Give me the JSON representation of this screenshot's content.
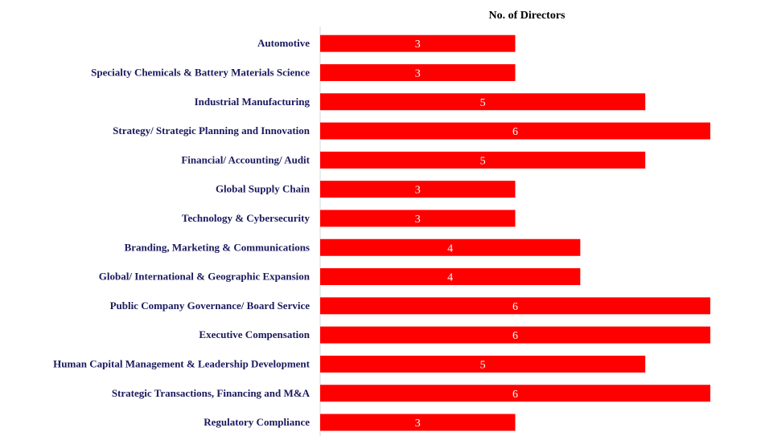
{
  "chart_data": {
    "type": "bar",
    "orientation": "horizontal",
    "title": "No. of Directors",
    "categories": [
      "Automotive",
      "Specialty Chemicals & Battery Materials Science",
      "Industrial Manufacturing",
      "Strategy/ Strategic Planning and Innovation",
      "Financial/ Accounting/ Audit",
      "Global Supply Chain",
      "Technology & Cybersecurity",
      "Branding, Marketing & Communications",
      "Global/ International & Geographic Expansion",
      "Public Company Governance/ Board Service",
      "Executive Compensation",
      "Human Capital Management & Leadership Development",
      "Strategic Transactions, Financing and M&A",
      "Regulatory Compliance"
    ],
    "values": [
      3,
      3,
      5,
      6,
      5,
      3,
      3,
      4,
      4,
      6,
      6,
      5,
      6,
      3
    ],
    "xlim": [
      0,
      6
    ],
    "grid": false,
    "legend": "none",
    "bar_color": "#ff0000",
    "data_label_color": "#ffffff",
    "label_color": "#1a1a5e"
  }
}
